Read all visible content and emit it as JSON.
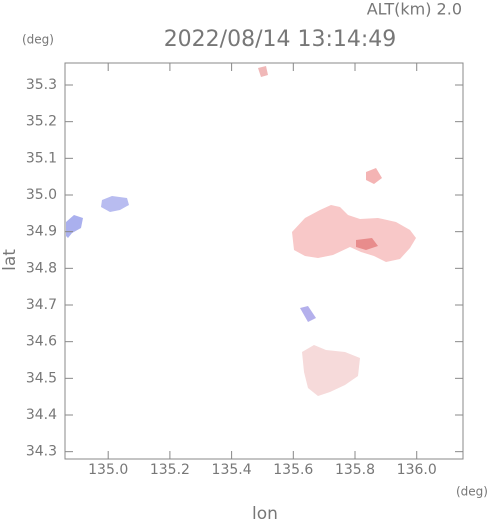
{
  "chart_data": {
    "type": "map",
    "title": "2022/08/14 13:14:49",
    "annotation": "ALT(km) 2.0",
    "x_label": "lon",
    "y_label": "lat",
    "x_unit": "(deg)",
    "y_unit": "(deg)",
    "xlim": [
      134.86,
      136.15
    ],
    "ylim": [
      34.28,
      35.36
    ],
    "xticks": [
      {
        "value": 135,
        "label": "135.0"
      },
      135.2,
      135.4,
      135.6,
      135.8,
      {
        "value": 136,
        "label": "136.0"
      }
    ],
    "yticks": [
      34.3,
      34.4,
      34.5,
      34.6,
      34.7,
      34.8,
      34.9,
      {
        "value": 35,
        "label": "35.0"
      },
      35.1,
      35.2,
      35.3
    ]
  }
}
